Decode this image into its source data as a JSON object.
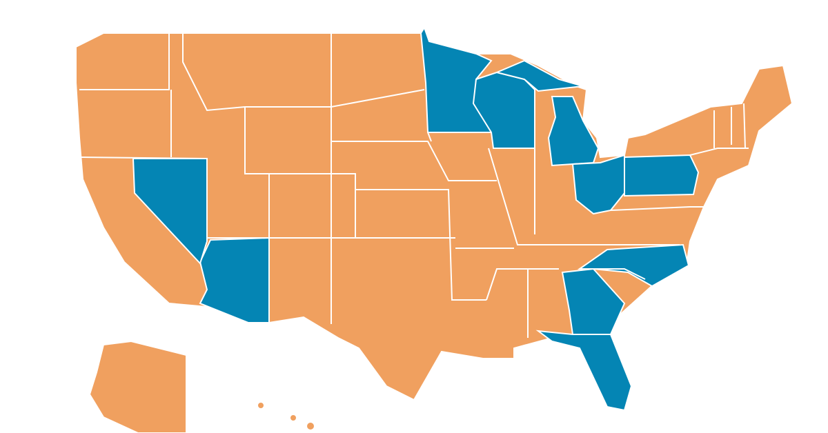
{
  "map": {
    "fill": "#f0a05f",
    "highlight": "#0485b4",
    "border": "#ffffff"
  }
}
